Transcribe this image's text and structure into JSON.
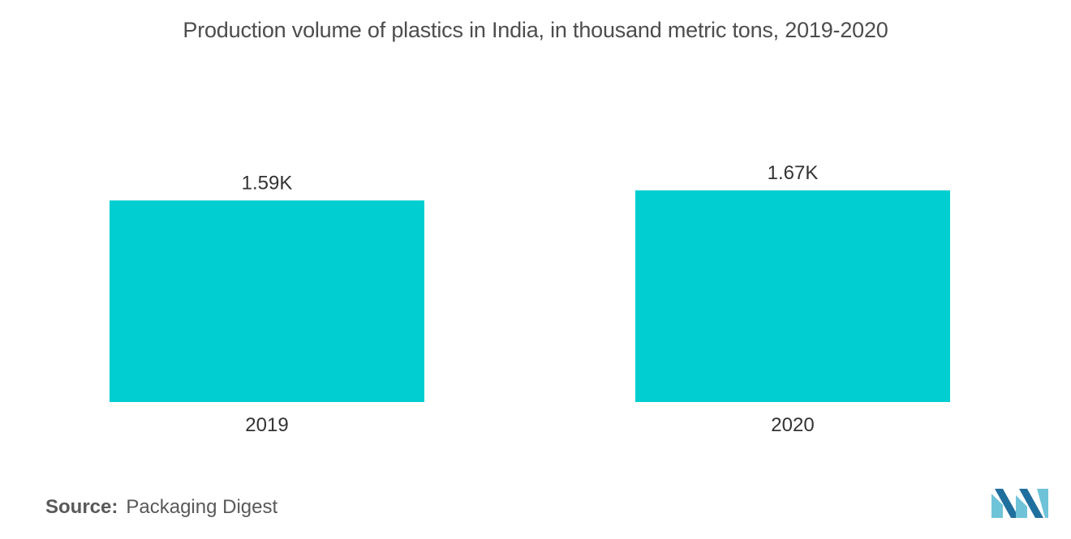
{
  "chart_data": {
    "type": "bar",
    "title": "Production volume of plastics in India, in thousand metric tons, 2019-2020",
    "categories": [
      "2019",
      "2020"
    ],
    "values": [
      1590,
      1670
    ],
    "value_labels": [
      "1.59K",
      "1.67K"
    ],
    "bar_color": "#00CED1",
    "grid": false,
    "legend": "none"
  },
  "source": {
    "label": "Source:",
    "text": "Packaging Digest"
  },
  "logo": {
    "icon": "mordor-intelligence-logo-icon",
    "colors": [
      "#6fc3d9",
      "#1f6f9e"
    ]
  }
}
